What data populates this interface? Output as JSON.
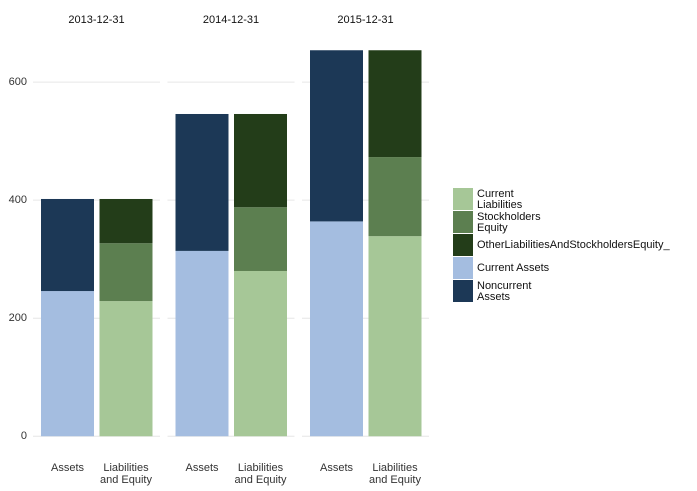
{
  "chart_data": {
    "type": "bar",
    "stacked": true,
    "facets": [
      "2013-12-31",
      "2014-12-31",
      "2015-12-31"
    ],
    "categories": [
      "Assets",
      "Liabilities\nand Equity"
    ],
    "ylim": [
      -25,
      690
    ],
    "yticks": [
      0,
      200,
      400,
      600
    ],
    "grid": true,
    "legend": "right",
    "series": [
      {
        "name": "Current\nLiabilities",
        "color": "#a6c797",
        "values": [
          [
            null,
            229
          ],
          [
            null,
            280
          ],
          [
            null,
            339
          ]
        ]
      },
      {
        "name": "Stockholders\nEquity",
        "color": "#5c7f50",
        "values": [
          [
            null,
            98
          ],
          [
            null,
            108
          ],
          [
            null,
            134
          ]
        ]
      },
      {
        "name": "OtherLiabilitiesAndStockholdersEquity_",
        "color": "#233d19",
        "values": [
          [
            null,
            75
          ],
          [
            null,
            158
          ],
          [
            null,
            181
          ]
        ]
      },
      {
        "name": "Current Assets",
        "color": "#a4bde0",
        "values": [
          [
            246,
            null
          ],
          [
            314,
            null
          ],
          [
            364,
            null
          ]
        ]
      },
      {
        "name": "Noncurrent\nAssets",
        "color": "#1c3856",
        "values": [
          [
            156,
            null
          ],
          [
            232,
            null
          ],
          [
            290,
            null
          ]
        ]
      }
    ],
    "stack_order": [
      3,
      4,
      0,
      1,
      2
    ]
  }
}
